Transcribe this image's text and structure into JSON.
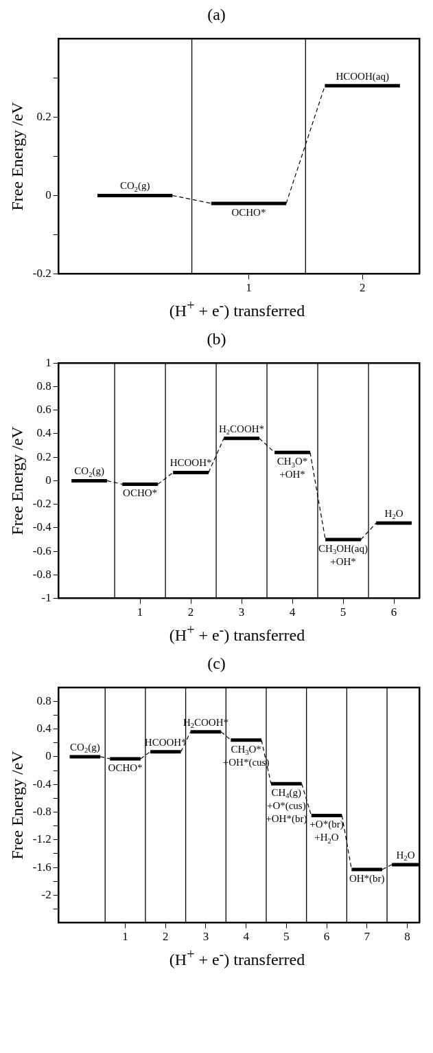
{
  "chart_data": [
    {
      "type": "line",
      "title": "(a)",
      "xlabel": "(H$^{+}$ + e$^{-}$) transferred",
      "ylabel": "Free Energy /eV",
      "line_style": "dashed",
      "legend": false,
      "grid": false,
      "series": [
        {
          "color": "#000000",
          "x": [
            -0.33,
            0.33,
            0.67,
            1.33,
            1.67,
            2.33
          ],
          "values": [
            0,
            0,
            -0.02,
            -0.02,
            0.28,
            0.28
          ]
        }
      ],
      "xlim": [
        -0.67,
        2.5
      ],
      "xticks": [
        1,
        2
      ],
      "ylim": [
        -0.2,
        0.4
      ],
      "yticks": [
        -0.2,
        {
          "value": -0.1,
          "label": null
        },
        0,
        {
          "value": 0.1,
          "label": null
        },
        0.2,
        {
          "value": 0.3,
          "label": null
        }
      ],
      "ref_lines": [
        {
          "axis": "x",
          "value": 0.5,
          "color": "#000000"
        },
        {
          "axis": "x",
          "value": 1.5,
          "color": "#000000"
        }
      ],
      "annotations": [
        "CO$_{2}$(g)",
        "OCHO*",
        "HCOOH(aq)"
      ]
    },
    {
      "type": "line",
      "title": "(b)",
      "xlabel": "(H$^{+}$ + e$^{-}$) transferred",
      "ylabel": "Free Energy /eV",
      "line_style": "dashed",
      "legend": false,
      "grid": false,
      "series": [
        {
          "color": "#000000",
          "x": [
            -0.35,
            0.35,
            0.65,
            1.35,
            1.65,
            2.35,
            2.65,
            3.35,
            3.65,
            4.35,
            4.65,
            5.35,
            5.65,
            6.35
          ],
          "values": [
            0,
            0,
            -0.03,
            -0.03,
            0.07,
            0.07,
            0.36,
            0.36,
            0.24,
            0.24,
            -0.5,
            -0.5,
            -0.36,
            -0.36
          ]
        }
      ],
      "xlim": [
        -0.6,
        6.5
      ],
      "xticks": [
        1,
        2,
        3,
        4,
        5,
        6
      ],
      "ylim": [
        -1,
        1
      ],
      "yticks": [
        -1,
        -0.8,
        -0.6,
        -0.4,
        -0.2,
        0,
        0.2,
        0.4,
        0.6,
        0.8,
        1
      ],
      "ref_lines": [
        {
          "axis": "x",
          "value": 0.5,
          "color": "#000000"
        },
        {
          "axis": "x",
          "value": 1.5,
          "color": "#000000"
        },
        {
          "axis": "x",
          "value": 2.5,
          "color": "#000000"
        },
        {
          "axis": "x",
          "value": 3.5,
          "color": "#000000"
        },
        {
          "axis": "x",
          "value": 4.5,
          "color": "#000000"
        },
        {
          "axis": "x",
          "value": 5.5,
          "color": "#000000"
        }
      ],
      "annotations": [
        "CO$_{2}$(g)",
        "OCHO*",
        "HCOOH*",
        "H$_{2}$COOH*",
        "CH$_{3}$O*\n+OH*",
        "CH$_{3}$OH(aq)\n+OH*",
        "H$_{2}$O"
      ]
    },
    {
      "type": "line",
      "title": "(c)",
      "xlabel": "(H$^{+}$ + e$^{-}$) transferred",
      "ylabel": "Free Energy /eV",
      "line_style": "dashed",
      "legend": false,
      "grid": false,
      "series": [
        {
          "color": "#000000",
          "x": [
            -0.38,
            0.38,
            0.62,
            1.38,
            1.62,
            2.38,
            2.62,
            3.38,
            3.62,
            4.38,
            4.62,
            5.38,
            5.62,
            6.38,
            6.62,
            7.38,
            7.62,
            8.3
          ],
          "values": [
            0,
            0,
            -0.03,
            -0.03,
            0.07,
            0.07,
            0.36,
            0.36,
            0.24,
            0.24,
            -0.39,
            -0.39,
            -0.85,
            -0.85,
            -1.63,
            -1.63,
            -1.56,
            -1.56
          ]
        }
      ],
      "xlim": [
        -0.65,
        8.3
      ],
      "xticks": [
        1,
        2,
        3,
        4,
        5,
        6,
        7,
        8
      ],
      "ylim": [
        -2.4,
        1
      ],
      "yticks": [
        {
          "value": -2.2,
          "label": null
        },
        -2,
        {
          "value": -1.8,
          "label": null
        },
        -1.6,
        {
          "value": -1.4,
          "label": null
        },
        -1.2,
        {
          "value": -1,
          "label": null
        },
        -0.8,
        {
          "value": -0.6,
          "label": null
        },
        -0.4,
        {
          "value": -0.2,
          "label": null
        },
        0,
        {
          "value": 0.2,
          "label": null
        },
        0.4,
        {
          "value": 0.6,
          "label": null
        },
        0.8
      ],
      "ref_lines": [
        {
          "axis": "x",
          "value": 0.5,
          "color": "#000000"
        },
        {
          "axis": "x",
          "value": 1.5,
          "color": "#000000"
        },
        {
          "axis": "x",
          "value": 2.5,
          "color": "#000000"
        },
        {
          "axis": "x",
          "value": 3.5,
          "color": "#000000"
        },
        {
          "axis": "x",
          "value": 4.5,
          "color": "#000000"
        },
        {
          "axis": "x",
          "value": 5.5,
          "color": "#000000"
        },
        {
          "axis": "x",
          "value": 6.5,
          "color": "#000000"
        },
        {
          "axis": "x",
          "value": 7.5,
          "color": "#000000"
        }
      ],
      "annotations": [
        "CO$_{2}$(g)",
        "OCHO*",
        "HCOOH*",
        "H$_{2}$COOH*",
        "CH$_{3}$O*\n+OH*(cus)",
        "CH$_{4}$(g)\n+O*(cus)\n+OH*(br)",
        "+O*(br)\n+H$_{2}$O",
        "OH*(br)",
        "H$_{2}$O"
      ]
    }
  ]
}
